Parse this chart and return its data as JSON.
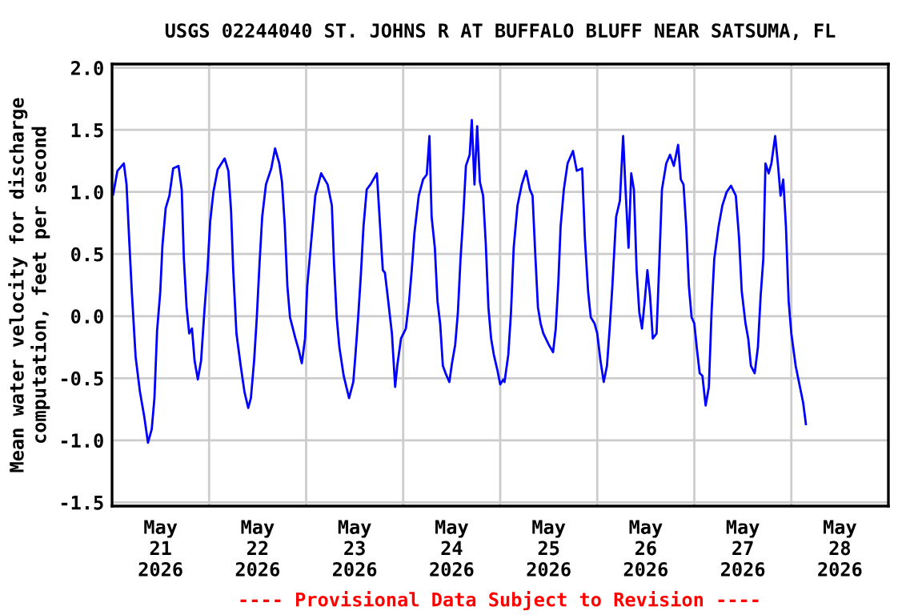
{
  "chart_data": {
    "type": "line",
    "title": "USGS 02244040 ST. JOHNS R AT BUFFALO BLUFF NEAR SATSUMA, FL",
    "ylabel": "Mean water velocity for discharge\ncomputation, feet per second",
    "annotations": [
      "---- Provisional Data Subject to Revision ----"
    ],
    "xlim": [
      "2026-05-20T12:00",
      "2026-05-28T12:00"
    ],
    "xticks": [
      {
        "value": "2026-05-21T00:00",
        "label": "May\n21\n2026"
      },
      {
        "value": "2026-05-22T00:00",
        "label": "May\n22\n2026"
      },
      {
        "value": "2026-05-23T00:00",
        "label": "May\n23\n2026"
      },
      {
        "value": "2026-05-24T00:00",
        "label": "May\n24\n2026"
      },
      {
        "value": "2026-05-25T00:00",
        "label": "May\n25\n2026"
      },
      {
        "value": "2026-05-26T00:00",
        "label": "May\n26\n2026"
      },
      {
        "value": "2026-05-27T00:00",
        "label": "May\n27\n2026"
      },
      {
        "value": "2026-05-28T00:00",
        "label": "May\n28\n2026"
      },
      {
        "value": "2026-05-21T12:00",
        "label": null
      },
      {
        "value": "2026-05-22T12:00",
        "label": null
      },
      {
        "value": "2026-05-23T12:00",
        "label": null
      },
      {
        "value": "2026-05-24T12:00",
        "label": null
      },
      {
        "value": "2026-05-25T12:00",
        "label": null
      },
      {
        "value": "2026-05-26T12:00",
        "label": null
      },
      {
        "value": "2026-05-27T12:00",
        "label": null
      }
    ],
    "ylim": [
      -1.53,
      2.03
    ],
    "yticks": [
      {
        "value": 2,
        "label": "2.0"
      },
      {
        "value": 1.5,
        "label": "1.5"
      },
      {
        "value": 1,
        "label": "1.0"
      },
      {
        "value": 0.5,
        "label": "0.5"
      },
      {
        "value": 0,
        "label": "0.0"
      },
      {
        "value": -0.5,
        "label": "-0.5"
      },
      {
        "value": -1,
        "label": "-1.0"
      },
      {
        "value": -1.5,
        "label": "-1.5"
      }
    ],
    "grid": true,
    "legend": false,
    "series": [
      {
        "color": "#0000ff",
        "x": [
          "2026-05-20T12:16",
          "2026-05-20T13:20",
          "2026-05-20T14:55",
          "2026-05-20T15:35",
          "2026-05-20T16:15",
          "2026-05-20T16:55",
          "2026-05-20T17:50",
          "2026-05-20T18:54",
          "2026-05-20T19:58",
          "2026-05-20T20:53",
          "2026-05-20T21:49",
          "2026-05-20T22:29",
          "2026-05-20T23:08",
          "2026-05-20T23:56",
          "2026-05-21T00:28",
          "2026-05-21T01:16",
          "2026-05-21T02:11",
          "2026-05-21T03:07",
          "2026-05-21T04:26",
          "2026-05-21T05:14",
          "2026-05-21T05:46",
          "2026-05-21T06:26",
          "2026-05-21T07:05",
          "2026-05-21T07:46",
          "2026-05-21T08:25",
          "2026-05-21T09:13",
          "2026-05-21T10:01",
          "2026-05-21T10:49",
          "2026-05-21T11:36",
          "2026-05-21T12:16",
          "2026-05-21T13:04",
          "2026-05-21T14:07",
          "2026-05-21T15:51",
          "2026-05-21T16:46",
          "2026-05-21T17:26",
          "2026-05-21T17:58",
          "2026-05-21T18:46",
          "2026-05-21T19:49",
          "2026-05-21T20:45",
          "2026-05-21T21:41",
          "2026-05-21T22:20",
          "2026-05-21T23:08",
          "2026-05-21T23:48",
          "2026-05-22T00:28",
          "2026-05-22T01:08",
          "2026-05-22T02:04",
          "2026-05-22T03:23",
          "2026-05-22T04:19",
          "2026-05-22T05:22",
          "2026-05-22T06:02",
          "2026-05-22T06:42",
          "2026-05-22T07:22",
          "2026-05-22T08:01",
          "2026-05-22T09:21",
          "2026-05-22T10:09",
          "2026-05-22T10:56",
          "2026-05-22T11:44",
          "2026-05-22T12:16",
          "2026-05-22T13:20",
          "2026-05-22T14:16",
          "2026-05-22T15:43",
          "2026-05-22T17:19",
          "2026-05-22T18:22",
          "2026-05-22T18:54",
          "2026-05-22T19:34",
          "2026-05-22T20:13",
          "2026-05-22T21:17",
          "2026-05-22T22:37",
          "2026-05-22T23:40",
          "2026-05-23T00:12",
          "2026-05-23T00:52",
          "2026-05-23T01:32",
          "2026-05-23T02:11",
          "2026-05-23T02:59",
          "2026-05-23T03:55",
          "2026-05-23T05:30",
          "2026-05-23T06:18",
          "2026-05-23T06:58",
          "2026-05-23T07:29",
          "2026-05-23T08:10",
          "2026-05-23T09:13",
          "2026-05-23T10:01",
          "2026-05-23T10:32",
          "2026-05-23T11:28",
          "2026-05-23T12:40",
          "2026-05-23T13:28",
          "2026-05-23T14:07",
          "2026-05-23T14:47",
          "2026-05-23T15:51",
          "2026-05-23T16:55",
          "2026-05-23T17:50",
          "2026-05-23T18:30",
          "2026-05-23T19:02",
          "2026-05-23T19:50",
          "2026-05-23T20:29",
          "2026-05-23T21:09",
          "2026-05-23T21:49",
          "2026-05-23T22:29",
          "2026-05-23T23:25",
          "2026-05-24T00:04",
          "2026-05-24T00:52",
          "2026-05-24T01:32",
          "2026-05-24T02:11",
          "2026-05-24T02:51",
          "2026-05-24T03:31",
          "2026-05-24T04:27",
          "2026-05-24T04:58",
          "2026-05-24T05:38",
          "2026-05-24T06:18",
          "2026-05-24T06:58",
          "2026-05-24T07:46",
          "2026-05-24T08:25",
          "2026-05-24T09:05",
          "2026-05-24T09:45",
          "2026-05-24T10:25",
          "2026-05-24T11:20",
          "2026-05-24T12:00",
          "2026-05-24T12:48",
          "2026-05-24T13:04",
          "2026-05-24T14:00",
          "2026-05-24T14:40",
          "2026-05-24T15:20",
          "2026-05-24T16:16",
          "2026-05-24T17:20",
          "2026-05-24T18:24",
          "2026-05-24T19:20",
          "2026-05-24T20:00",
          "2026-05-24T20:40",
          "2026-05-24T21:20",
          "2026-05-24T22:00",
          "2026-05-24T22:40",
          "2026-05-25T00:00",
          "2026-05-25T01:04",
          "2026-05-25T01:44",
          "2026-05-25T02:24",
          "2026-05-25T02:56",
          "2026-05-25T03:44",
          "2026-05-25T04:40",
          "2026-05-25T06:00",
          "2026-05-25T06:56",
          "2026-05-25T08:16",
          "2026-05-25T08:56",
          "2026-05-25T09:44",
          "2026-05-25T10:24",
          "2026-05-25T11:20",
          "2026-05-25T12:00",
          "2026-05-25T12:48",
          "2026-05-25T13:36",
          "2026-05-25T14:24",
          "2026-05-25T15:04",
          "2026-05-25T15:44",
          "2026-05-25T16:40",
          "2026-05-25T17:36",
          "2026-05-25T18:24",
          "2026-05-25T18:56",
          "2026-05-25T19:44",
          "2026-05-25T20:24",
          "2026-05-25T21:04",
          "2026-05-25T21:44",
          "2026-05-25T22:24",
          "2026-05-25T23:04",
          "2026-05-25T23:44",
          "2026-05-26T00:24",
          "2026-05-26T01:04",
          "2026-05-26T01:44",
          "2026-05-26T02:40",
          "2026-05-26T03:20",
          "2026-05-26T04:00",
          "2026-05-26T05:04",
          "2026-05-26T06:00",
          "2026-05-26T06:56",
          "2026-05-26T08:00",
          "2026-05-26T08:40",
          "2026-05-26T09:20",
          "2026-05-26T10:00",
          "2026-05-26T10:40",
          "2026-05-26T11:20",
          "2026-05-26T12:00",
          "2026-05-26T12:40",
          "2026-05-26T13:20",
          "2026-05-26T14:00",
          "2026-05-26T14:48",
          "2026-05-26T15:36",
          "2026-05-26T16:16",
          "2026-05-26T16:56",
          "2026-05-26T18:00",
          "2026-05-26T18:56",
          "2026-05-26T20:00",
          "2026-05-26T21:04",
          "2026-05-26T22:16",
          "2026-05-26T23:04",
          "2026-05-26T23:44",
          "2026-05-27T00:40",
          "2026-05-27T01:20",
          "2026-05-27T02:00",
          "2026-05-27T02:56",
          "2026-05-27T03:44",
          "2026-05-27T04:24",
          "2026-05-27T05:04",
          "2026-05-27T05:36",
          "2026-05-27T06:24",
          "2026-05-27T07:04",
          "2026-05-27T08:00",
          "2026-05-27T08:40",
          "2026-05-27T09:20",
          "2026-05-27T10:00",
          "2026-05-27T10:40",
          "2026-05-27T11:20",
          "2026-05-27T12:00",
          "2026-05-27T13:04",
          "2026-05-27T14:00",
          "2026-05-27T14:56",
          "2026-05-27T15:36"
        ],
        "values": [
          0.98,
          1.17,
          1.23,
          1.06,
          0.61,
          0.18,
          -0.33,
          -0.61,
          -0.81,
          -1.02,
          -0.91,
          -0.66,
          -0.12,
          0.2,
          0.57,
          0.87,
          0.97,
          1.19,
          1.21,
          1.02,
          0.46,
          0.07,
          -0.14,
          -0.1,
          -0.36,
          -0.51,
          -0.36,
          0.03,
          0.37,
          0.76,
          1.0,
          1.18,
          1.27,
          1.17,
          0.85,
          0.37,
          -0.14,
          -0.4,
          -0.61,
          -0.74,
          -0.66,
          -0.36,
          -0.01,
          0.42,
          0.8,
          1.06,
          1.19,
          1.35,
          1.23,
          1.08,
          0.74,
          0.24,
          -0.01,
          -0.18,
          -0.27,
          -0.38,
          -0.18,
          0.24,
          0.63,
          0.97,
          1.15,
          1.06,
          0.89,
          0.42,
          -0.01,
          -0.25,
          -0.48,
          -0.66,
          -0.53,
          -0.31,
          -0.01,
          0.33,
          0.72,
          1.02,
          1.06,
          1.15,
          0.72,
          0.37,
          0.35,
          0.16,
          -0.14,
          -0.57,
          -0.4,
          -0.18,
          -0.1,
          0.12,
          0.37,
          0.67,
          0.97,
          1.1,
          1.14,
          1.45,
          0.8,
          0.55,
          0.12,
          -0.06,
          -0.4,
          -0.46,
          -0.53,
          -0.38,
          -0.23,
          0.03,
          0.46,
          0.8,
          1.21,
          1.3,
          1.58,
          1.06,
          1.53,
          1.08,
          0.97,
          0.59,
          0.07,
          -0.18,
          -0.31,
          -0.44,
          -0.55,
          -0.51,
          -0.53,
          -0.31,
          0.03,
          0.55,
          0.89,
          1.06,
          1.17,
          1.02,
          0.97,
          0.5,
          0.07,
          -0.06,
          -0.14,
          -0.23,
          -0.29,
          -0.1,
          0.29,
          0.72,
          1.02,
          1.23,
          1.33,
          1.17,
          1.19,
          0.63,
          0.2,
          -0.01,
          -0.06,
          -0.14,
          -0.36,
          -0.53,
          -0.4,
          -0.1,
          0.24,
          0.8,
          0.93,
          1.45,
          1.06,
          0.55,
          1.15,
          1.02,
          0.37,
          0.03,
          -0.1,
          0.12,
          0.37,
          0.16,
          -0.18,
          -0.14,
          0.42,
          1.02,
          1.23,
          1.3,
          1.21,
          1.38,
          1.1,
          1.06,
          0.72,
          0.24,
          -0.01,
          -0.06,
          -0.27,
          -0.46,
          -0.48,
          -0.72,
          -0.57,
          0.03,
          0.46,
          0.72,
          0.89,
          1.0,
          1.05,
          0.97,
          0.63,
          0.2,
          -0.06,
          -0.18,
          -0.4,
          -0.46,
          -0.25,
          0.16,
          0.46,
          1.23,
          1.15,
          1.23,
          1.45,
          1.23,
          0.97,
          1.1,
          0.72,
          0.12,
          -0.14,
          -0.4,
          -0.55,
          -0.7,
          -0.87
        ]
      }
    ]
  }
}
